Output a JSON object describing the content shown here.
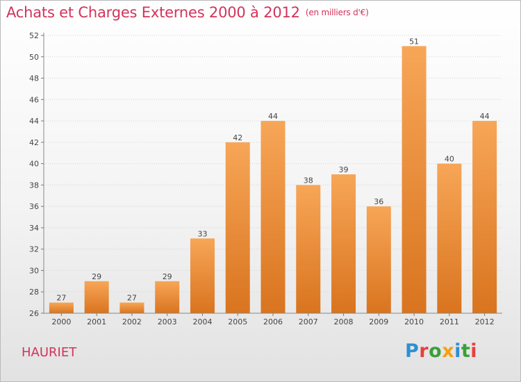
{
  "title": "Achats et Charges Externes 2000 à 2012",
  "unit": "(en milliers d'€)",
  "place": "HAURIET",
  "logo": {
    "letters": [
      {
        "ch": "P",
        "color": "#2f8fd2"
      },
      {
        "ch": "r",
        "color": "#e8403c"
      },
      {
        "ch": "o",
        "color": "#3c9e3a"
      },
      {
        "ch": "x",
        "color": "#f5a010"
      },
      {
        "ch": "i",
        "color": "#2f8fd2"
      },
      {
        "ch": "t",
        "color": "#3c9e3a"
      },
      {
        "ch": "i",
        "color": "#e8403c"
      }
    ]
  },
  "colors": {
    "bar_top": "#f7a657",
    "bar_bottom": "#d9741f",
    "title": "#d2335a"
  },
  "chart_data": {
    "type": "bar",
    "title": "Achats et Charges Externes 2000 à 2012",
    "subtitle": "(en milliers d'€)",
    "categories": [
      "2000",
      "2001",
      "2002",
      "2003",
      "2004",
      "2005",
      "2006",
      "2007",
      "2008",
      "2009",
      "2010",
      "2011",
      "2012"
    ],
    "values": [
      27,
      29,
      27,
      29,
      33,
      42,
      44,
      38,
      39,
      36,
      51,
      40,
      44
    ],
    "ylim": [
      26,
      52
    ],
    "yticks": [
      26,
      28,
      30,
      32,
      34,
      36,
      38,
      40,
      42,
      44,
      46,
      48,
      50,
      52
    ],
    "grid": true,
    "xlabel": "",
    "ylabel": ""
  }
}
